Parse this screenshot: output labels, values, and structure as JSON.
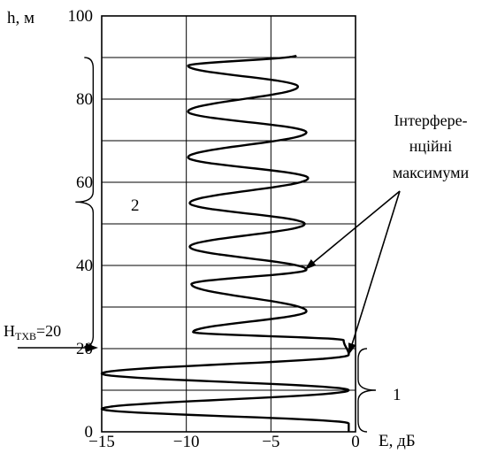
{
  "chart_data": {
    "type": "line",
    "title": "",
    "xlabel": "E, дБ",
    "ylabel": "h, м",
    "xlim": [
      -15,
      0
    ],
    "ylim": [
      0,
      100
    ],
    "x_ticks": [
      -15,
      -10,
      -5,
      0
    ],
    "y_ticks": [
      0,
      20,
      40,
      60,
      80,
      100
    ],
    "x_tick_labels": [
      "−15",
      "−10",
      "−5",
      "0"
    ],
    "y_tick_labels": [
      "0",
      "20",
      "40",
      "60",
      "80",
      "100"
    ],
    "grid": true,
    "series": [
      {
        "name": "",
        "segments": [
          {
            "y_start": 0,
            "y_end": 20,
            "x_max": -0.4,
            "x_min": -15,
            "max_heights": [
              2,
              10,
              18.5
            ],
            "min_heights": [
              5.5,
              14
            ]
          },
          {
            "y_start": 20.5,
            "y_end": 90,
            "max_heights": [
              22,
              39,
              61,
              83
            ],
            "max_values": [
              -0.7,
              -2.9,
              -2.8,
              -3.4
            ],
            "min_heights": [
              24,
              35.5,
              44.5,
              55,
              66,
              77,
              88
            ],
            "min_values": [
              -9.6,
              -9.7,
              -9.8,
              -9.8,
              -9.9,
              -9.9,
              -9.9
            ],
            "extra_max_heights": [
              29,
              50,
              72
            ],
            "extra_max_values": [
              -2.9,
              -3.0,
              -2.9
            ],
            "end": {
              "x": -3.5,
              "y": 90.5
            }
          }
        ]
      }
    ],
    "annotations": {
      "interference_label_lines": [
        "Інтерфере-",
        "нційні",
        "максимуми"
      ],
      "interference_arrow_targets": [
        {
          "x": -3.0,
          "y": 39
        },
        {
          "x": -0.4,
          "y": 18.5
        }
      ],
      "brace_1_label": "1",
      "brace_1_range": [
        0,
        20
      ],
      "brace_2_label": "2",
      "brace_2_range": [
        20,
        90
      ],
      "htxb_main": "H",
      "htxb_sub": "ТХВ",
      "htxb_value": "=20",
      "htxb_height": 20
    }
  }
}
